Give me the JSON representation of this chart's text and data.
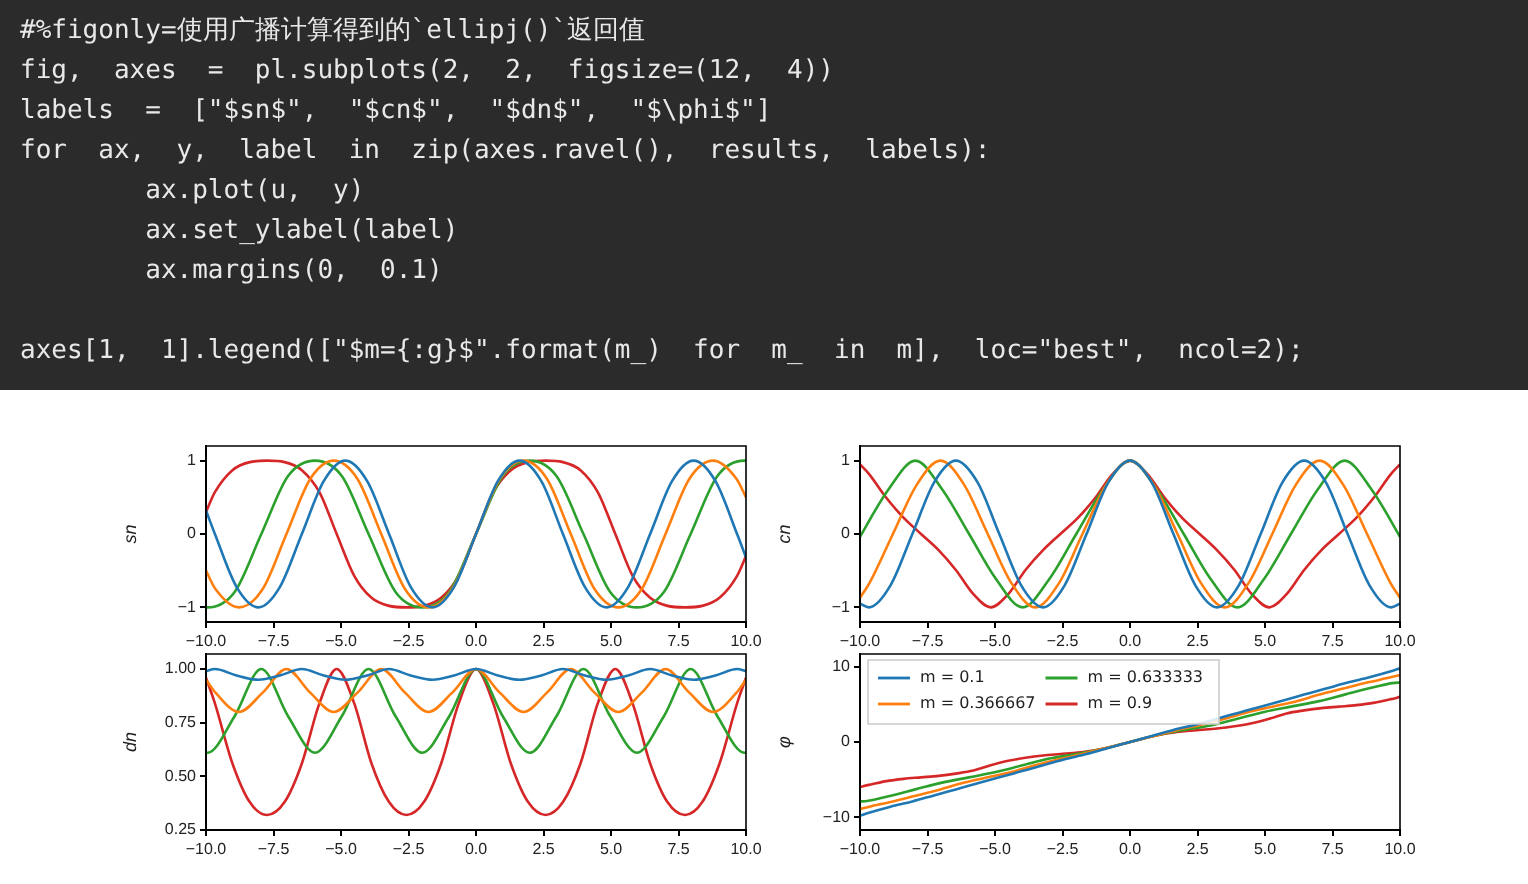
{
  "chart_data": [
    {
      "type": "other",
      "annotations": [
        "#%figonly=使用广播计算得到的`ellipj()`返回值",
        "fig,  axes  =  pl.subplots(2,  2,  figsize=(12,  4))",
        "labels  =  [\"$sn$\",  \"$cn$\",  \"$dn$\",  \"$\\phi$\"]",
        "for  ax,  y,  label  in  zip(axes.ravel(),  results,  labels):",
        "        ax.plot(u,  y)",
        "        ax.set_ylabel(label)",
        "        ax.margins(0,  0.1)",
        "axes[1,  1].legend([\"$m={:g}$\".format(m_)  for  m_  in  m],  loc=\"best\",  ncol=2);"
      ]
    },
    {
      "type": "line",
      "ylabel": "sn",
      "xlim": [
        -10,
        10
      ],
      "ylim": [
        -1.2,
        1.2
      ],
      "xticks": [
        {
          "value": -10,
          "label": "−10.0"
        },
        {
          "value": -7.5,
          "label": "−7.5"
        },
        {
          "value": -5,
          "label": "−5.0"
        },
        {
          "value": -2.5,
          "label": "−2.5"
        },
        {
          "value": 0,
          "label": "0.0"
        },
        {
          "value": 2.5,
          "label": "2.5"
        },
        {
          "value": 5,
          "label": "5.0"
        },
        {
          "value": 7.5,
          "label": "7.5"
        },
        {
          "value": 10,
          "label": "10.0"
        }
      ],
      "yticks": [
        {
          "value": -1,
          "label": "−1"
        },
        0,
        1
      ],
      "series": [
        {
          "color": "#1f77b4",
          "x": [
            -10,
            -9.67,
            -8.87,
            -8.06,
            -7.26,
            -6.45,
            -5.64,
            -4.84,
            -4.03,
            -3.22,
            -2.42,
            -1.61,
            -0.81,
            0,
            0.81,
            1.61,
            2.42,
            3.22,
            4.03,
            4.84,
            5.64,
            6.45,
            7.26,
            8.06,
            8.87,
            9.67,
            10
          ],
          "values": [
            0.32,
            0,
            -0.72,
            -1,
            -0.72,
            0,
            0.72,
            1,
            0.72,
            0,
            -0.72,
            -1,
            -0.72,
            0,
            0.72,
            1,
            0.72,
            0,
            -0.72,
            -1,
            -0.72,
            0,
            0.72,
            1,
            0.72,
            0,
            -0.32
          ]
        },
        {
          "color": "#ff7f0e",
          "x": [
            -10,
            -9.65,
            -8.78,
            -7.9,
            -7.02,
            -6.14,
            -5.27,
            -4.39,
            -3.51,
            -2.63,
            -1.76,
            -0.88,
            0,
            0.88,
            1.76,
            2.63,
            3.51,
            4.39,
            5.27,
            6.14,
            7.02,
            7.9,
            8.78,
            9.65,
            10
          ],
          "values": [
            -0.5,
            -0.75,
            -1,
            -0.75,
            0,
            0.75,
            1,
            0.75,
            0,
            -0.75,
            -1,
            -0.75,
            0,
            0.75,
            1,
            0.75,
            0,
            -0.75,
            -1,
            -0.75,
            0,
            0.75,
            1,
            0.75,
            0.5
          ]
        },
        {
          "color": "#2ca02c",
          "x": [
            -10,
            -9.94,
            -8.94,
            -7.95,
            -6.96,
            -5.96,
            -4.97,
            -3.98,
            -2.98,
            -1.99,
            -0.99,
            0,
            0.99,
            1.99,
            2.98,
            3.98,
            4.97,
            5.96,
            6.96,
            7.95,
            8.94,
            9.94,
            10
          ],
          "values": [
            -1,
            -1,
            -0.79,
            0,
            0.79,
            1,
            0.79,
            0,
            -0.79,
            -1,
            -0.79,
            0,
            0.79,
            1,
            0.79,
            0,
            -0.79,
            -1,
            -0.79,
            0,
            0.79,
            1,
            1
          ]
        },
        {
          "color": "#d62728",
          "x": [
            -10,
            -9.67,
            -9.02,
            -8.38,
            -7.74,
            -7.09,
            -6.45,
            -5.8,
            -5.16,
            -4.51,
            -3.87,
            -3.22,
            -2.58,
            -1.93,
            -1.29,
            -0.64,
            0,
            0.64,
            1.29,
            1.93,
            2.58,
            3.22,
            3.87,
            4.51,
            5.16,
            5.8,
            6.45,
            7.09,
            7.74,
            8.38,
            9.02,
            9.67,
            10
          ],
          "values": [
            0.3,
            0.57,
            0.87,
            0.98,
            1,
            0.98,
            0.87,
            0.57,
            0,
            -0.57,
            -0.87,
            -0.98,
            -1,
            -0.98,
            -0.87,
            -0.57,
            0,
            0.57,
            0.87,
            0.98,
            1,
            0.98,
            0.87,
            0.57,
            0,
            -0.57,
            -0.87,
            -0.98,
            -1,
            -0.98,
            -0.87,
            -0.57,
            -0.3
          ]
        }
      ]
    },
    {
      "type": "line",
      "ylabel": "cn",
      "xlim": [
        -10,
        10
      ],
      "ylim": [
        -1.2,
        1.2
      ],
      "xticks": [
        {
          "value": -10,
          "label": "−10.0"
        },
        {
          "value": -7.5,
          "label": "−7.5"
        },
        {
          "value": -5,
          "label": "−5.0"
        },
        {
          "value": -2.5,
          "label": "−2.5"
        },
        {
          "value": 0,
          "label": "0.0"
        },
        {
          "value": 2.5,
          "label": "2.5"
        },
        {
          "value": 5,
          "label": "5.0"
        },
        {
          "value": 7.5,
          "label": "7.5"
        },
        {
          "value": 10,
          "label": "10.0"
        }
      ],
      "yticks": [
        {
          "value": -1,
          "label": "−1"
        },
        0,
        1
      ],
      "series": [
        {
          "color": "#1f77b4",
          "x": [
            -10,
            -9.67,
            -8.87,
            -8.06,
            -7.26,
            -6.45,
            -5.64,
            -4.84,
            -4.03,
            -3.22,
            -2.42,
            -1.61,
            -0.81,
            0,
            0.81,
            1.61,
            2.42,
            3.22,
            4.03,
            4.84,
            5.64,
            6.45,
            7.26,
            8.06,
            8.87,
            9.67,
            10
          ],
          "values": [
            -0.95,
            -1,
            -0.7,
            0,
            0.7,
            1,
            0.7,
            0,
            -0.7,
            -1,
            -0.7,
            0,
            0.7,
            1,
            0.7,
            0,
            -0.7,
            -1,
            -0.7,
            0,
            0.7,
            1,
            0.7,
            0,
            -0.7,
            -1,
            -0.95
          ]
        },
        {
          "color": "#ff7f0e",
          "x": [
            -10,
            -9.65,
            -8.78,
            -7.9,
            -7.02,
            -6.14,
            -5.27,
            -4.39,
            -3.51,
            -2.63,
            -1.76,
            -0.88,
            0,
            0.88,
            1.76,
            2.63,
            3.51,
            4.39,
            5.27,
            6.14,
            7.02,
            7.9,
            8.78,
            9.65,
            10
          ],
          "values": [
            -0.87,
            -0.67,
            0,
            0.67,
            1,
            0.67,
            0,
            -0.67,
            -1,
            -0.67,
            0,
            0.67,
            1,
            0.67,
            0,
            -0.67,
            -1,
            -0.67,
            0,
            0.67,
            1,
            0.67,
            0,
            -0.67,
            -0.87
          ]
        },
        {
          "color": "#2ca02c",
          "x": [
            -10,
            -9.94,
            -8.94,
            -7.95,
            -6.96,
            -5.96,
            -4.97,
            -3.98,
            -2.98,
            -1.99,
            -0.99,
            0,
            0.99,
            1.99,
            2.98,
            3.98,
            4.97,
            5.96,
            6.96,
            7.95,
            8.94,
            9.94,
            10
          ],
          "values": [
            -0.04,
            0,
            0.61,
            1,
            0.61,
            0,
            -0.61,
            -1,
            -0.61,
            0,
            0.61,
            1,
            0.61,
            0,
            -0.61,
            -1,
            -0.61,
            0,
            0.61,
            1,
            0.61,
            0,
            -0.04
          ]
        },
        {
          "color": "#d62728",
          "x": [
            -10,
            -9.67,
            -9.02,
            -8.38,
            -7.74,
            -7.09,
            -6.45,
            -5.8,
            -5.16,
            -4.51,
            -3.87,
            -3.22,
            -2.58,
            -1.93,
            -1.29,
            -0.64,
            0,
            0.64,
            1.29,
            1.93,
            2.58,
            3.22,
            3.87,
            4.51,
            5.16,
            5.8,
            6.45,
            7.09,
            7.74,
            8.38,
            9.02,
            9.67,
            10
          ],
          "values": [
            0.95,
            0.82,
            0.49,
            0.22,
            0,
            -0.22,
            -0.49,
            -0.82,
            -1,
            -0.82,
            -0.49,
            -0.22,
            0,
            0.22,
            0.49,
            0.82,
            1,
            0.82,
            0.49,
            0.22,
            0,
            -0.22,
            -0.49,
            -0.82,
            -1,
            -0.82,
            -0.49,
            -0.22,
            0,
            0.22,
            0.49,
            0.82,
            0.95
          ]
        }
      ]
    },
    {
      "type": "line",
      "ylabel": "dn",
      "xlim": [
        -10,
        10
      ],
      "ylim": [
        0.25,
        1.07
      ],
      "xticks": [
        {
          "value": -10,
          "label": "−10.0"
        },
        {
          "value": -7.5,
          "label": "−7.5"
        },
        {
          "value": -5,
          "label": "−5.0"
        },
        {
          "value": -2.5,
          "label": "−2.5"
        },
        {
          "value": 0,
          "label": "0.0"
        },
        {
          "value": 2.5,
          "label": "2.5"
        },
        {
          "value": 5,
          "label": "5.0"
        },
        {
          "value": 7.5,
          "label": "7.5"
        },
        {
          "value": 10,
          "label": "10.0"
        }
      ],
      "yticks": [
        {
          "value": 0.25,
          "label": "0.25"
        },
        {
          "value": 0.5,
          "label": "0.50"
        },
        {
          "value": 0.75,
          "label": "0.75"
        },
        {
          "value": 1,
          "label": "1.00"
        }
      ],
      "series": [
        {
          "color": "#1f77b4",
          "x": [
            -10,
            -9.67,
            -8.87,
            -8.06,
            -7.26,
            -6.45,
            -5.64,
            -4.84,
            -4.03,
            -3.22,
            -2.42,
            -1.61,
            -0.81,
            0,
            0.81,
            1.61,
            2.42,
            3.22,
            4.03,
            4.84,
            5.64,
            6.45,
            7.26,
            8.06,
            8.87,
            9.67,
            10
          ],
          "values": [
            0.99,
            1,
            0.97,
            0.95,
            0.97,
            1,
            0.97,
            0.95,
            0.97,
            1,
            0.97,
            0.95,
            0.97,
            1,
            0.97,
            0.95,
            0.97,
            1,
            0.97,
            0.95,
            0.97,
            1,
            0.97,
            0.95,
            0.97,
            1,
            0.99
          ]
        },
        {
          "color": "#ff7f0e",
          "x": [
            -10,
            -9.65,
            -8.78,
            -7.9,
            -7.02,
            -6.14,
            -5.27,
            -4.39,
            -3.51,
            -2.63,
            -1.76,
            -0.88,
            0,
            0.88,
            1.76,
            2.63,
            3.51,
            4.39,
            5.27,
            6.14,
            7.02,
            7.9,
            8.78,
            9.65,
            10
          ],
          "values": [
            0.95,
            0.89,
            0.8,
            0.89,
            1,
            0.89,
            0.8,
            0.89,
            1,
            0.89,
            0.8,
            0.89,
            1,
            0.89,
            0.8,
            0.89,
            1,
            0.89,
            0.8,
            0.89,
            1,
            0.89,
            0.8,
            0.89,
            0.95
          ]
        },
        {
          "color": "#2ca02c",
          "x": [
            -10,
            -9.94,
            -8.94,
            -7.95,
            -6.96,
            -5.96,
            -4.97,
            -3.98,
            -2.98,
            -1.99,
            -0.99,
            0,
            0.99,
            1.99,
            2.98,
            3.98,
            4.97,
            5.96,
            6.96,
            7.95,
            8.94,
            9.94,
            10
          ],
          "values": [
            0.61,
            0.61,
            0.78,
            1,
            0.78,
            0.61,
            0.78,
            1,
            0.78,
            0.61,
            0.78,
            1,
            0.78,
            0.61,
            0.78,
            1,
            0.78,
            0.61,
            0.78,
            1,
            0.78,
            0.61,
            0.61
          ]
        },
        {
          "color": "#d62728",
          "x": [
            -10,
            -9.67,
            -9.02,
            -8.38,
            -7.74,
            -7.09,
            -6.45,
            -5.8,
            -5.16,
            -4.51,
            -3.87,
            -3.22,
            -2.58,
            -1.93,
            -1.29,
            -0.64,
            0,
            0.64,
            1.29,
            1.93,
            2.58,
            3.22,
            3.87,
            4.51,
            5.16,
            5.8,
            6.45,
            7.09,
            7.74,
            8.38,
            9.02,
            9.67,
            10
          ],
          "values": [
            0.96,
            0.84,
            0.56,
            0.38,
            0.32,
            0.38,
            0.56,
            0.84,
            1,
            0.84,
            0.56,
            0.38,
            0.32,
            0.38,
            0.56,
            0.84,
            1,
            0.84,
            0.56,
            0.38,
            0.32,
            0.38,
            0.56,
            0.84,
            1,
            0.84,
            0.56,
            0.38,
            0.32,
            0.38,
            0.56,
            0.84,
            0.96
          ]
        }
      ]
    },
    {
      "type": "line",
      "ylabel": "φ",
      "xlim": [
        -10,
        10
      ],
      "ylim": [
        -11.7,
        11.7
      ],
      "legend": "top left",
      "xticks": [
        {
          "value": -10,
          "label": "−10.0"
        },
        {
          "value": -7.5,
          "label": "−7.5"
        },
        {
          "value": -5,
          "label": "−5.0"
        },
        {
          "value": -2.5,
          "label": "−2.5"
        },
        {
          "value": 0,
          "label": "0.0"
        },
        {
          "value": 2.5,
          "label": "2.5"
        },
        {
          "value": 5,
          "label": "5.0"
        },
        {
          "value": 7.5,
          "label": "7.5"
        },
        {
          "value": 10,
          "label": "10.0"
        }
      ],
      "yticks": [
        {
          "value": -10,
          "label": "−10"
        },
        0,
        10
      ],
      "series": [
        {
          "name": "m = 0.1",
          "color": "#1f77b4",
          "x": [
            -10,
            -9.67,
            -8.87,
            -8.06,
            -7.26,
            -6.45,
            -5.64,
            -4.84,
            -4.03,
            -3.22,
            -2.42,
            -1.61,
            -0.81,
            0,
            0.81,
            1.61,
            2.42,
            3.22,
            4.03,
            4.84,
            5.64,
            6.45,
            7.26,
            8.06,
            8.87,
            9.67,
            10
          ],
          "values": [
            -9.8,
            -9.4,
            -8.6,
            -7.9,
            -7.1,
            -6.3,
            -5.5,
            -4.7,
            -3.9,
            -3.1,
            -2.3,
            -1.6,
            -0.8,
            0,
            0.8,
            1.6,
            2.3,
            3.1,
            3.9,
            4.7,
            5.5,
            6.3,
            7.1,
            7.9,
            8.6,
            9.4,
            9.8
          ]
        },
        {
          "name": "m = 0.366667",
          "color": "#ff7f0e",
          "x": [
            -10,
            -9.65,
            -8.78,
            -7.9,
            -7.02,
            -6.14,
            -5.27,
            -4.39,
            -3.51,
            -2.63,
            -1.76,
            -0.88,
            0,
            0.88,
            1.76,
            2.63,
            3.51,
            4.39,
            5.27,
            6.14,
            7.02,
            7.9,
            8.78,
            9.65,
            10
          ],
          "values": [
            -8.9,
            -8.6,
            -7.9,
            -7.1,
            -6.3,
            -5.4,
            -4.7,
            -4,
            -3.1,
            -2.3,
            -1.6,
            -0.8,
            0,
            0.8,
            1.6,
            2.3,
            3.1,
            4,
            4.7,
            5.4,
            6.3,
            7.1,
            7.9,
            8.6,
            8.9
          ]
        },
        {
          "name": "m = 0.633333",
          "color": "#2ca02c",
          "x": [
            -10,
            -9.94,
            -8.94,
            -7.95,
            -6.96,
            -5.96,
            -4.97,
            -3.98,
            -2.98,
            -1.99,
            -0.99,
            0,
            0.99,
            1.99,
            2.98,
            3.98,
            4.97,
            5.96,
            6.96,
            7.95,
            8.94,
            9.94,
            10
          ],
          "values": [
            -7.9,
            -7.9,
            -7.2,
            -6.3,
            -5.4,
            -4.7,
            -4,
            -3.1,
            -2.2,
            -1.6,
            -0.9,
            0,
            0.9,
            1.6,
            2.2,
            3.1,
            4,
            4.7,
            5.4,
            6.3,
            7.2,
            7.9,
            7.9
          ]
        },
        {
          "name": "m = 0.9",
          "color": "#d62728",
          "x": [
            -10,
            -9.67,
            -9.02,
            -8.38,
            -7.74,
            -7.09,
            -6.45,
            -5.8,
            -5.16,
            -4.51,
            -3.87,
            -3.22,
            -2.58,
            -1.93,
            -1.29,
            -0.64,
            0,
            0.64,
            1.29,
            1.93,
            2.58,
            3.22,
            3.87,
            4.51,
            5.16,
            5.8,
            6.45,
            7.09,
            7.74,
            8.38,
            9.02,
            9.67,
            10
          ],
          "values": [
            -6,
            -5.7,
            -5.2,
            -4.9,
            -4.7,
            -4.5,
            -4.2,
            -3.8,
            -3.1,
            -2.5,
            -2.1,
            -1.8,
            -1.6,
            -1.4,
            -1.1,
            -0.6,
            0,
            0.6,
            1.1,
            1.4,
            1.6,
            1.8,
            2.1,
            2.5,
            3.1,
            3.8,
            4.2,
            4.5,
            4.7,
            4.9,
            5.2,
            5.7,
            6
          ]
        }
      ]
    }
  ]
}
